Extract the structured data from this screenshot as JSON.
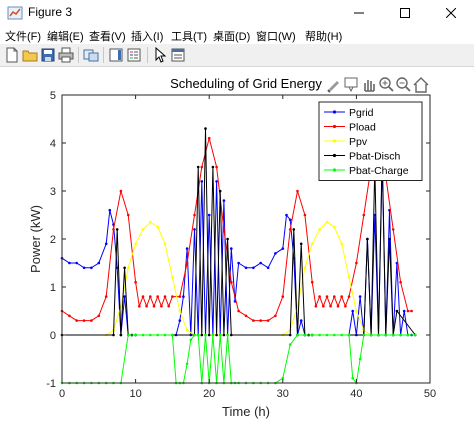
{
  "window": {
    "title": "Figure 3",
    "icon": "matlab-figure-icon"
  },
  "menu": [
    {
      "label": "文件(F)"
    },
    {
      "label": "编辑(E)"
    },
    {
      "label": "查看(V)"
    },
    {
      "label": "插入(I)"
    },
    {
      "label": "工具(T)"
    },
    {
      "label": "桌面(D)"
    },
    {
      "label": "窗口(W)"
    },
    {
      "label": "帮助(H)"
    }
  ],
  "toolbar": [
    "new-figure-icon",
    "open-icon",
    "save-icon",
    "print-icon",
    "link-plot-icon",
    "colorbar-icon",
    "legend-icon",
    "pointer-icon",
    "property-inspector-icon"
  ],
  "axes_toolbar": [
    "brush-icon",
    "datatip-icon",
    "pan-icon",
    "zoom-in-icon",
    "zoom-out-icon",
    "home-icon"
  ],
  "chart_data": {
    "type": "line",
    "title": "Scheduling of Grid Energy",
    "xlabel": "Time (h)",
    "ylabel": "Power (kW)",
    "xlim": [
      0,
      50
    ],
    "ylim": [
      -1,
      5
    ],
    "xticks": [
      "0",
      "10",
      "20",
      "30",
      "40",
      "50"
    ],
    "yticks": [
      "-1",
      "0",
      "1",
      "2",
      "3",
      "4",
      "5"
    ],
    "grid": false,
    "legend_position": "top-right",
    "series": [
      {
        "name": "Pgrid",
        "color": "#0000ff",
        "marker": "dot",
        "x": [
          0,
          1,
          2,
          3,
          4,
          5,
          6,
          6.5,
          7,
          7.5,
          8,
          8.5,
          9,
          9.5,
          10,
          15,
          15.5,
          16,
          16.5,
          17,
          17.5,
          18,
          18.5,
          19,
          19.5,
          20,
          20.5,
          21,
          21.5,
          22,
          22.5,
          23,
          23.5,
          24,
          25,
          26,
          27,
          28,
          29,
          30,
          30.5,
          31,
          31.5,
          32,
          32.5,
          33,
          33.5,
          34,
          39,
          39.5,
          40,
          40.5,
          41,
          41.5,
          42,
          42.5,
          43,
          43.5,
          44,
          44.5,
          45,
          45.5,
          46,
          46.5,
          47,
          47.5
        ],
        "y": [
          1.6,
          1.5,
          1.5,
          1.4,
          1.4,
          1.5,
          1.9,
          2.6,
          2.3,
          1.4,
          0,
          0.8,
          0,
          0,
          0,
          0,
          0,
          0.3,
          0.8,
          1.8,
          0,
          2.2,
          0,
          3.2,
          0,
          2.5,
          0,
          3.2,
          0,
          2.8,
          0,
          1.8,
          0.7,
          1.5,
          1.4,
          1.4,
          1.5,
          1.4,
          1.7,
          1.8,
          2.5,
          2.4,
          1.6,
          0,
          0.3,
          0,
          0,
          0,
          0,
          0.5,
          0,
          0.8,
          0,
          2,
          0,
          2.5,
          0,
          3.6,
          0,
          2.6,
          0,
          1.5,
          0,
          0.5,
          0,
          0
        ]
      },
      {
        "name": "Pload",
        "color": "#ff0000",
        "marker": "dot",
        "x": [
          0,
          1,
          2,
          3,
          4,
          5,
          6,
          7,
          8,
          9,
          10,
          10.5,
          11,
          11.5,
          12,
          12.5,
          13,
          13.5,
          14,
          14.5,
          15,
          16,
          17,
          18,
          19,
          20,
          21,
          22,
          23,
          24,
          25,
          26,
          27,
          28,
          29,
          30,
          31,
          32,
          33,
          34,
          34.5,
          35,
          35.5,
          36,
          36.5,
          37,
          37.5,
          38,
          38.5,
          39,
          40,
          41,
          42,
          43,
          44,
          45,
          46,
          47,
          47.5
        ],
        "y": [
          0.5,
          0.4,
          0.3,
          0.3,
          0.3,
          0.4,
          0.8,
          2.2,
          3.0,
          2.5,
          1.1,
          0.6,
          0.8,
          0.6,
          0.8,
          0.6,
          0.8,
          0.6,
          0.8,
          0.6,
          0.8,
          0.8,
          1.5,
          2.5,
          3.5,
          4.1,
          3.5,
          2.2,
          1.1,
          0.5,
          0.4,
          0.3,
          0.3,
          0.3,
          0.4,
          0.8,
          2.2,
          3.0,
          2.5,
          1.1,
          0.6,
          0.8,
          0.6,
          0.8,
          0.6,
          0.8,
          0.6,
          0.8,
          0.6,
          0.8,
          1.5,
          2.5,
          3.5,
          4.0,
          3.3,
          2.2,
          1.1,
          0.5,
          0.5
        ]
      },
      {
        "name": "Ppv",
        "color": "#ffff00",
        "marker": "dot",
        "x": [
          0,
          6,
          7,
          8,
          9,
          10,
          11,
          12,
          13,
          14,
          15,
          16,
          17,
          18,
          30,
          31,
          32,
          33,
          34,
          35,
          36,
          37,
          38,
          39,
          40,
          41,
          42,
          48
        ],
        "y": [
          0,
          0,
          0.1,
          0.6,
          1.4,
          1.9,
          2.2,
          2.35,
          2.25,
          1.9,
          1.2,
          0.5,
          0.1,
          0,
          0,
          0.1,
          0.6,
          1.4,
          1.9,
          2.2,
          2.35,
          2.25,
          1.9,
          1.2,
          0.5,
          0.1,
          0,
          0
        ]
      },
      {
        "name": "Pbat-Disch",
        "color": "#000000",
        "marker": "dot",
        "x": [
          0,
          7,
          7.5,
          8,
          8.5,
          9,
          9.5,
          10,
          18,
          18.5,
          19,
          19.5,
          20,
          20.5,
          21,
          21.5,
          22,
          22.5,
          23,
          31,
          31.5,
          32,
          32.5,
          33,
          33.5,
          34,
          41,
          41.5,
          42,
          42.5,
          43,
          43.5,
          44,
          44.5,
          45,
          45.5,
          48
        ],
        "y": [
          0,
          0,
          2.2,
          0,
          1.4,
          0,
          0,
          0,
          0,
          3.5,
          0,
          4.3,
          0,
          3.5,
          0,
          3,
          0,
          2,
          0,
          0,
          2.2,
          0,
          1.9,
          0,
          0,
          0,
          0,
          2,
          0,
          3.5,
          0,
          3.8,
          0,
          2,
          0,
          0.5,
          0
        ]
      },
      {
        "name": "Pbat-Charge",
        "color": "#00ff00",
        "marker": "dot",
        "x": [
          0,
          1,
          2,
          3,
          4,
          5,
          6,
          7,
          8,
          9,
          10,
          11,
          12,
          13,
          14,
          15,
          15.5,
          16,
          16.5,
          17,
          17.5,
          18,
          18.5,
          19,
          19.5,
          20,
          20.5,
          21,
          21.5,
          22,
          22.5,
          23,
          23.5,
          24,
          25,
          26,
          27,
          28,
          29,
          30,
          31,
          32,
          33,
          34,
          35,
          36,
          37,
          38,
          39,
          39.5,
          40,
          40.5,
          41,
          42,
          43,
          44,
          45,
          46,
          47,
          48
        ],
        "y": [
          -1,
          -1,
          -1,
          -1,
          -1,
          -1,
          -1,
          -1,
          -1,
          0,
          0,
          0,
          0,
          0,
          0,
          0,
          -1,
          -1,
          -1,
          -0.6,
          -0.1,
          0,
          0,
          -1,
          0,
          -1,
          0,
          -1,
          0,
          -1,
          0,
          -1,
          -1,
          -1,
          -1,
          -1,
          -1,
          -1,
          -1,
          -0.9,
          -0.2,
          0,
          0,
          0,
          0,
          0,
          0,
          0,
          0,
          -0.9,
          -1,
          -0.5,
          0,
          0,
          0,
          0,
          0,
          0,
          0,
          0
        ]
      }
    ]
  }
}
